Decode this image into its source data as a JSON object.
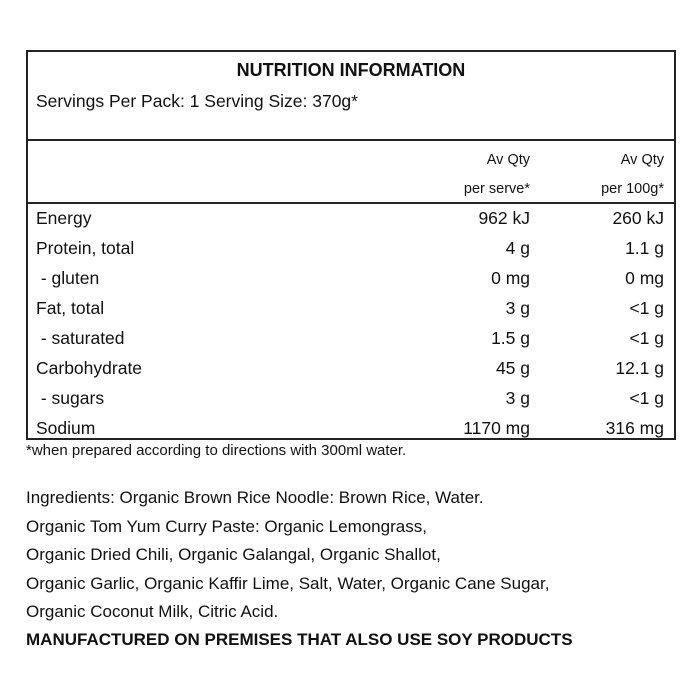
{
  "title": "NUTRITION INFORMATION",
  "servings": "Servings Per Pack: 1   Serving Size: 370g*",
  "columns": {
    "per_serve": [
      "Av Qty",
      "per serve*"
    ],
    "per_100g": [
      "Av Qty",
      "per 100g*"
    ]
  },
  "rows": [
    {
      "label": "Energy",
      "per_serve": "962 kJ",
      "per_100g": "260 kJ"
    },
    {
      "label": "Protein, total",
      "per_serve": "4 g",
      "per_100g": "1.1 g"
    },
    {
      "label": " - gluten",
      "per_serve": "0 mg",
      "per_100g": "0 mg"
    },
    {
      "label": "Fat, total",
      "per_serve": "3 g",
      "per_100g": "<1 g"
    },
    {
      "label": " - saturated",
      "per_serve": "1.5 g",
      "per_100g": "<1 g"
    },
    {
      "label": "Carbohydrate",
      "per_serve": "45 g",
      "per_100g": "12.1 g"
    },
    {
      "label": " - sugars",
      "per_serve": "3 g",
      "per_100g": "<1 g"
    },
    {
      "label": "Sodium",
      "per_serve": "1170 mg",
      "per_100g": "316 mg"
    }
  ],
  "footnote": "*when prepared according to directions with 300ml water.",
  "ingredients": [
    "Ingredients: Organic Brown Rice Noodle: Brown Rice, Water.",
    "Organic Tom Yum Curry Paste: Organic Lemongrass,",
    "Organic Dried Chili, Organic Galangal, Organic Shallot,",
    "Organic Garlic, Organic Kaffir Lime, Salt, Water, Organic Cane Sugar,",
    "Organic Coconut Milk, Citric Acid."
  ],
  "allergen": "MANUFACTURED ON PREMISES THAT ALSO USE SOY PRODUCTS"
}
